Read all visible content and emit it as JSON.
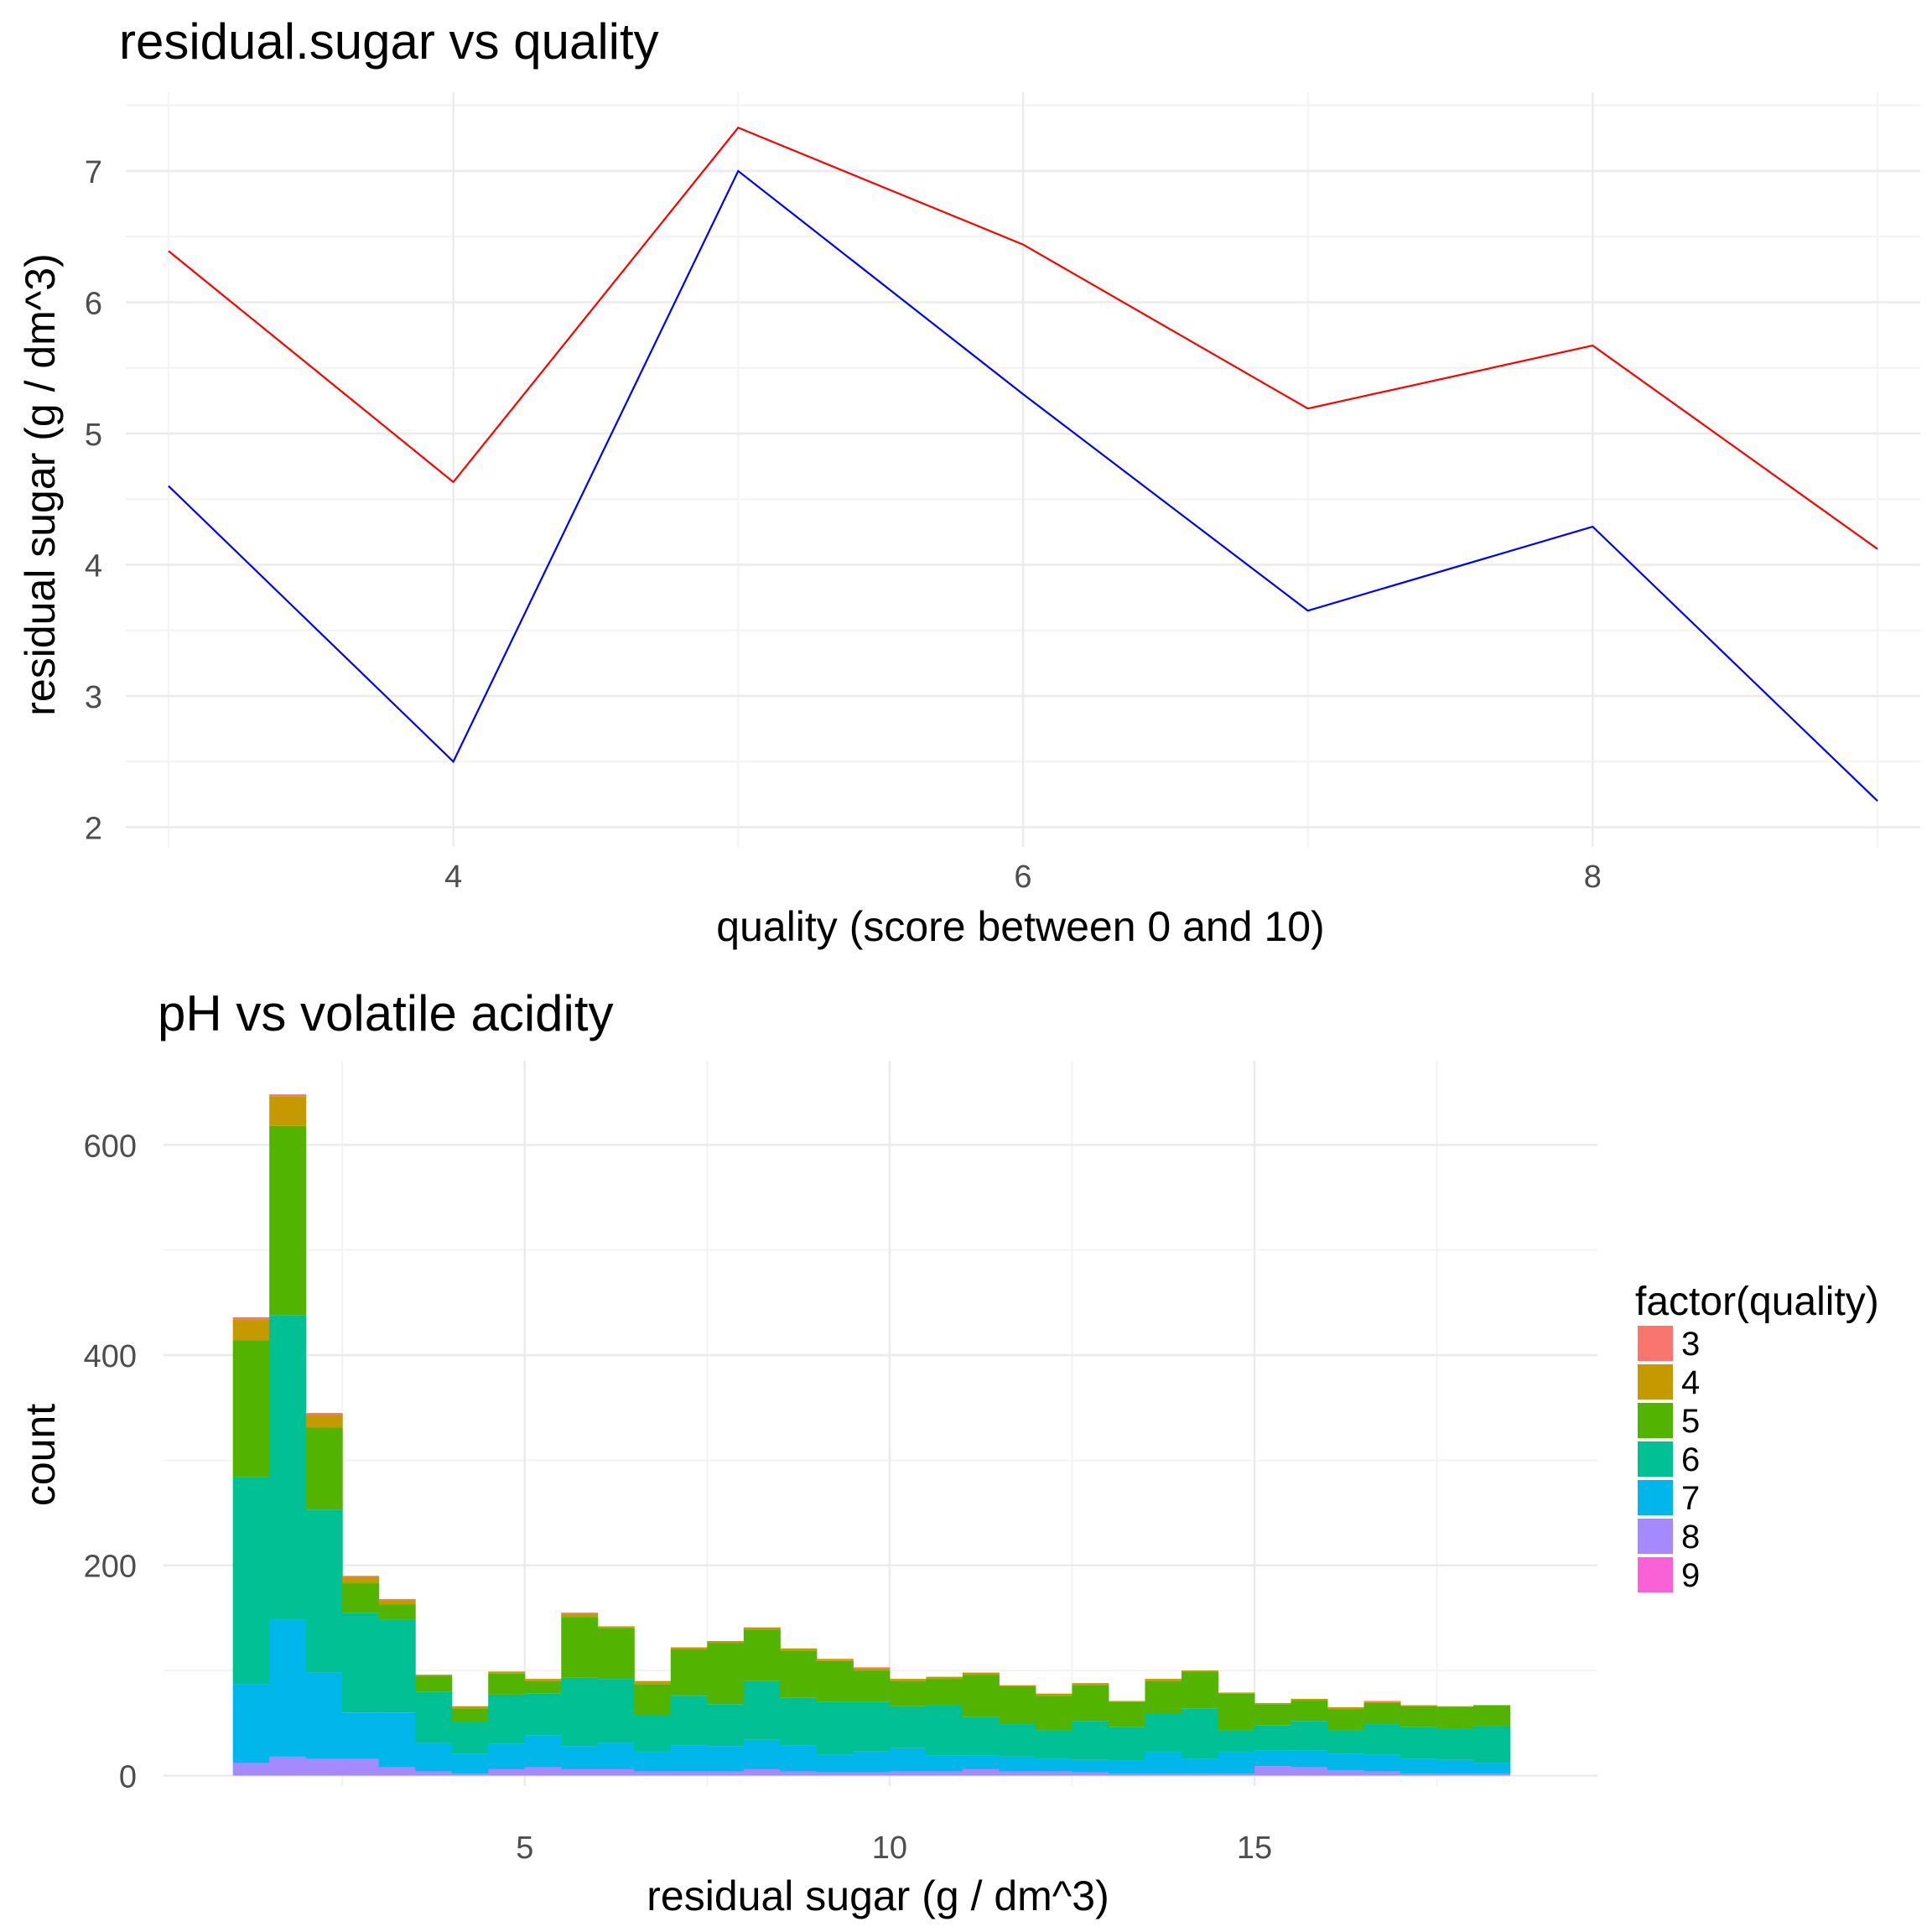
{
  "chart_data": [
    {
      "type": "line",
      "title": "residual.sugar vs quality",
      "xlabel": "quality (score between 0 and 10)",
      "ylabel": "residual sugar (g / dm^3)",
      "xlim": [
        2.85,
        9.15
      ],
      "ylim": [
        1.85,
        7.6
      ],
      "xticks": [
        4,
        6,
        8
      ],
      "yticks": [
        2,
        3,
        4,
        5,
        6,
        7
      ],
      "grid": true,
      "x": [
        3,
        4,
        5,
        6,
        7,
        8,
        9
      ],
      "series": [
        {
          "color": "#ff0000",
          "values": [
            6.39,
            4.63,
            7.33,
            6.44,
            5.19,
            5.67,
            4.12
          ]
        },
        {
          "color": "#0000ff",
          "values": [
            4.6,
            2.5,
            7.0,
            5.3,
            3.65,
            4.29,
            2.2
          ]
        }
      ]
    },
    {
      "type": "bar",
      "title": "pH vs volatile acidity",
      "xlabel": "residual sugar (g / dm^3)",
      "ylabel": "count",
      "xlim": [
        0.05,
        19.7
      ],
      "ylim": [
        -10,
        680
      ],
      "xticks": [
        5,
        10,
        15
      ],
      "yticks": [
        0,
        200,
        400,
        600
      ],
      "grid": true,
      "binwidth": 0.5,
      "bin_starts": [
        1.0,
        1.5,
        2.0,
        2.5,
        3.0,
        3.5,
        4.0,
        4.5,
        5.0,
        5.5,
        6.0,
        6.5,
        7.0,
        7.5,
        8.0,
        8.5,
        9.0,
        9.5,
        10.0,
        10.5,
        11.0,
        11.5,
        12.0,
        12.5,
        13.0,
        13.5,
        14.0,
        14.5,
        15.0,
        15.5,
        16.0,
        16.5,
        17.0,
        17.5,
        18.0
      ],
      "legend": {
        "title": "factor(quality)",
        "position": "right",
        "entries": [
          {
            "label": "3",
            "color": "#F8766D"
          },
          {
            "label": "4",
            "color": "#C49A00"
          },
          {
            "label": "5",
            "color": "#53B400"
          },
          {
            "label": "6",
            "color": "#00C094"
          },
          {
            "label": "7",
            "color": "#00B6EB"
          },
          {
            "label": "8",
            "color": "#A58AFF"
          },
          {
            "label": "9",
            "color": "#FB61D7"
          }
        ]
      },
      "series": [
        {
          "name": "9",
          "values": [
            0,
            0,
            0,
            0,
            0,
            0,
            0,
            0,
            0,
            0,
            0,
            0,
            0,
            0,
            0,
            0,
            0,
            0,
            0,
            0,
            0,
            0,
            0,
            0,
            0,
            0,
            0,
            0,
            0,
            0,
            0,
            0,
            0,
            0,
            0
          ]
        },
        {
          "name": "8",
          "values": [
            12,
            18,
            16,
            16,
            8,
            4,
            2,
            6,
            8,
            6,
            6,
            4,
            4,
            4,
            6,
            4,
            3,
            3,
            4,
            4,
            6,
            4,
            4,
            3,
            2,
            2,
            2,
            2,
            9,
            8,
            5,
            4,
            2,
            2,
            2
          ]
        },
        {
          "name": "7",
          "values": [
            75,
            130,
            82,
            44,
            52,
            27,
            19,
            24,
            30,
            22,
            25,
            18,
            25,
            24,
            28,
            25,
            17,
            20,
            22,
            15,
            13,
            14,
            12,
            12,
            12,
            20,
            14,
            20,
            15,
            16,
            16,
            16,
            14,
            13,
            10
          ]
        },
        {
          "name": "6",
          "values": [
            197,
            290,
            155,
            95,
            88,
            49,
            30,
            47,
            40,
            65,
            61,
            35,
            47,
            40,
            56,
            45,
            50,
            47,
            40,
            48,
            37,
            31,
            27,
            37,
            32,
            37,
            48,
            21,
            24,
            28,
            22,
            29,
            30,
            30,
            35
          ]
        },
        {
          "name": "5",
          "values": [
            130,
            180,
            78,
            28,
            15,
            15,
            13,
            20,
            12,
            58,
            48,
            30,
            44,
            58,
            49,
            45,
            39,
            30,
            24,
            25,
            40,
            36,
            33,
            34,
            24,
            31,
            35,
            35,
            20,
            20,
            20,
            20,
            20,
            20,
            20
          ]
        },
        {
          "name": "4",
          "values": [
            20,
            28,
            12,
            6,
            4,
            1,
            2,
            2,
            2,
            3,
            2,
            3,
            2,
            2,
            2,
            2,
            2,
            2,
            2,
            2,
            2,
            1,
            2,
            2,
            1,
            2,
            1,
            1,
            1,
            1,
            2,
            1,
            1,
            1,
            0
          ]
        },
        {
          "name": "3",
          "values": [
            2,
            2,
            2,
            1,
            1,
            0,
            0,
            0,
            0,
            1,
            0,
            0,
            0,
            0,
            0,
            0,
            0,
            1,
            0,
            0,
            0,
            0,
            0,
            0,
            0,
            0,
            0,
            0,
            0,
            0,
            0,
            1,
            0,
            0,
            0
          ]
        }
      ]
    }
  ]
}
